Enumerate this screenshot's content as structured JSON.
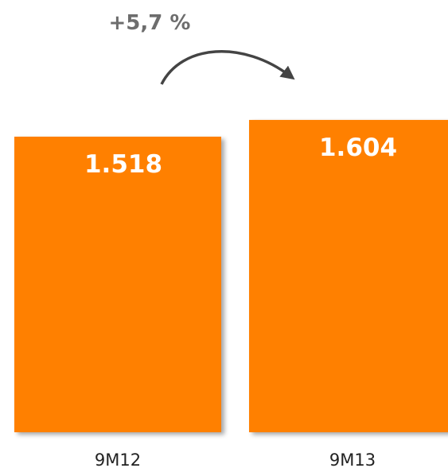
{
  "chart_data": {
    "type": "bar",
    "categories": [
      "9M12",
      "9M13"
    ],
    "values": [
      1518,
      1604
    ],
    "value_labels": [
      "1.518",
      "1.604"
    ],
    "change_label": "+5,7 %",
    "title": "",
    "xlabel": "",
    "ylabel": "",
    "grid": false,
    "legend": "none",
    "colors": {
      "bar": "#ff8000",
      "value_text": "#ffffff",
      "arrow": "#444444",
      "change_text": "#6d6d6d",
      "category_text": "#222222"
    }
  }
}
